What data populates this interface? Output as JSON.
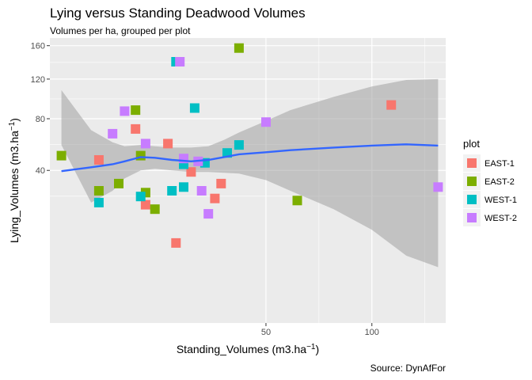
{
  "chart_data": {
    "type": "scatter",
    "title": "Lying versus Standing Deadwood Volumes",
    "subtitle": "Volumes per ha, grouped per plot",
    "xlabel": "Standing_Volumes (m3.ha",
    "ylabel": "Lying_Volumes (m3.ha",
    "unit_superscript": "−1",
    "caption": "Source: DynAfFor",
    "x_scale": "sqrt",
    "y_scale": "sqrt",
    "xlim": [
      1.2,
      145
    ],
    "ylim": [
      -2,
      170
    ],
    "x_ticks": [
      50,
      100
    ],
    "y_ticks": [
      40,
      80,
      120,
      160
    ],
    "grid": true,
    "legend": {
      "title": "plot",
      "position": "right",
      "entries": [
        {
          "name": "EAST-1",
          "color": "#F8766D"
        },
        {
          "name": "EAST-2",
          "color": "#7CAE00"
        },
        {
          "name": "WEST-1",
          "color": "#00BFC4"
        },
        {
          "name": "WEST-2",
          "color": "#C77CFF"
        }
      ]
    },
    "smooth": {
      "color": "#3366FF",
      "band_color": "#999999",
      "x": [
        2,
        5,
        8,
        10,
        13,
        16,
        20,
        25,
        30,
        35,
        40,
        50,
        60,
        80,
        100,
        120,
        140
      ],
      "y": [
        39.5,
        42,
        44,
        46,
        49,
        48.5,
        47,
        46,
        47,
        49,
        51,
        52.5,
        54,
        56,
        57.5,
        58.5,
        57.5
      ],
      "lower": [
        58,
        22,
        28,
        35,
        40,
        41,
        40,
        39,
        39,
        38.5,
        38,
        34,
        28,
        19,
        11,
        4,
        2
      ],
      "upper": [
        108,
        70,
        60,
        57,
        58,
        57,
        56,
        56,
        57,
        62,
        68,
        78,
        88,
        101,
        112,
        119,
        120
      ]
    },
    "series": [
      {
        "name": "EAST-1",
        "color": "#F8766D",
        "x": [
          6,
          12,
          14,
          19,
          21,
          25,
          32,
          34,
          111
        ],
        "y": [
          47,
          71,
          21,
          59,
          7,
          39,
          24,
          32,
          93
        ]
      },
      {
        "name": "EAST-2",
        "color": "#7CAE00",
        "x": [
          2,
          6,
          9,
          12,
          13,
          14,
          16,
          40,
          63
        ],
        "y": [
          50,
          28,
          32,
          88,
          50,
          27,
          19,
          157,
          23
        ]
      },
      {
        "name": "WEST-1",
        "color": "#00BFC4",
        "x": [
          6,
          13,
          20,
          21,
          23,
          23,
          26,
          29,
          36,
          40
        ],
        "y": [
          22,
          25,
          28,
          140,
          30,
          44,
          90,
          45,
          52,
          58
        ]
      },
      {
        "name": "WEST-2",
        "color": "#C77CFF",
        "x": [
          8,
          10,
          14,
          22,
          23,
          27,
          28,
          30,
          50,
          140
        ],
        "y": [
          67,
          87,
          59,
          140,
          48,
          46,
          28,
          17,
          77,
          30
        ]
      }
    ]
  }
}
